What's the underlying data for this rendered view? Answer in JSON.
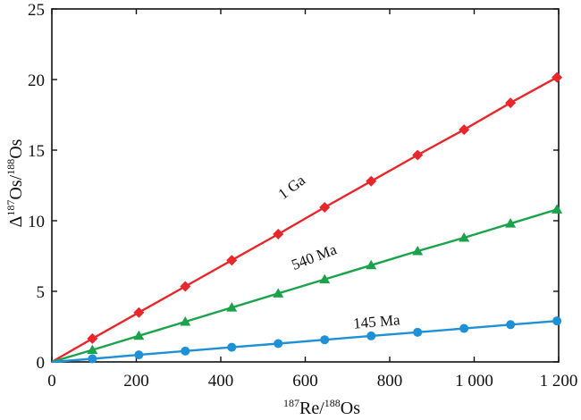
{
  "chart_data": {
    "type": "scatter",
    "title": "",
    "xlabel": {
      "sup1": "187",
      "main1": "Re/",
      "sup2": "188",
      "main2": "Os"
    },
    "ylabel": {
      "prefix": "Δ",
      "sup1": "187",
      "main1": "Os/",
      "sup2": "188",
      "main2": "Os"
    },
    "xlim": [
      0,
      1200
    ],
    "ylim": [
      0,
      25
    ],
    "xticks": [
      0,
      200,
      400,
      600,
      800,
      1000,
      1200
    ],
    "xtick_labels": [
      "0",
      "200",
      "400",
      "600",
      "800",
      "1 000",
      "1 200"
    ],
    "yticks": [
      0,
      5,
      10,
      15,
      20,
      25
    ],
    "ytick_labels": [
      "0",
      "5",
      "10",
      "15",
      "20",
      "25"
    ],
    "grid": false,
    "series": [
      {
        "name": "1 Ga",
        "color": "#e8262b",
        "marker": "diamond",
        "x": [
          0,
          96,
          206,
          316,
          426,
          536,
          646,
          756,
          866,
          976,
          1086,
          1196
        ],
        "y": [
          0,
          1.65,
          3.5,
          5.35,
          7.2,
          9.05,
          10.95,
          12.8,
          14.65,
          16.45,
          18.35,
          20.15
        ]
      },
      {
        "name": "540 Ma",
        "color": "#1aa34a",
        "marker": "triangle",
        "x": [
          0,
          96,
          206,
          316,
          426,
          536,
          646,
          756,
          866,
          976,
          1086,
          1196
        ],
        "y": [
          0,
          0.85,
          1.85,
          2.85,
          3.85,
          4.85,
          5.85,
          6.85,
          7.85,
          8.8,
          9.8,
          10.8
        ]
      },
      {
        "name": "145 Ma",
        "color": "#1e90d6",
        "marker": "circle",
        "x": [
          0,
          96,
          206,
          316,
          426,
          536,
          646,
          756,
          866,
          976,
          1086,
          1196
        ],
        "y": [
          0,
          0.22,
          0.5,
          0.77,
          1.04,
          1.3,
          1.57,
          1.84,
          2.1,
          2.37,
          2.64,
          2.9
        ]
      }
    ],
    "annotations": [
      {
        "text": "1 Ga",
        "x": 575,
        "y": 12.1,
        "rotate": -37
      },
      {
        "text": "540 Ma",
        "x": 625,
        "y": 7.1,
        "rotate": -21
      },
      {
        "text": "145 Ma",
        "x": 770,
        "y": 2.5,
        "rotate": -5
      }
    ]
  }
}
